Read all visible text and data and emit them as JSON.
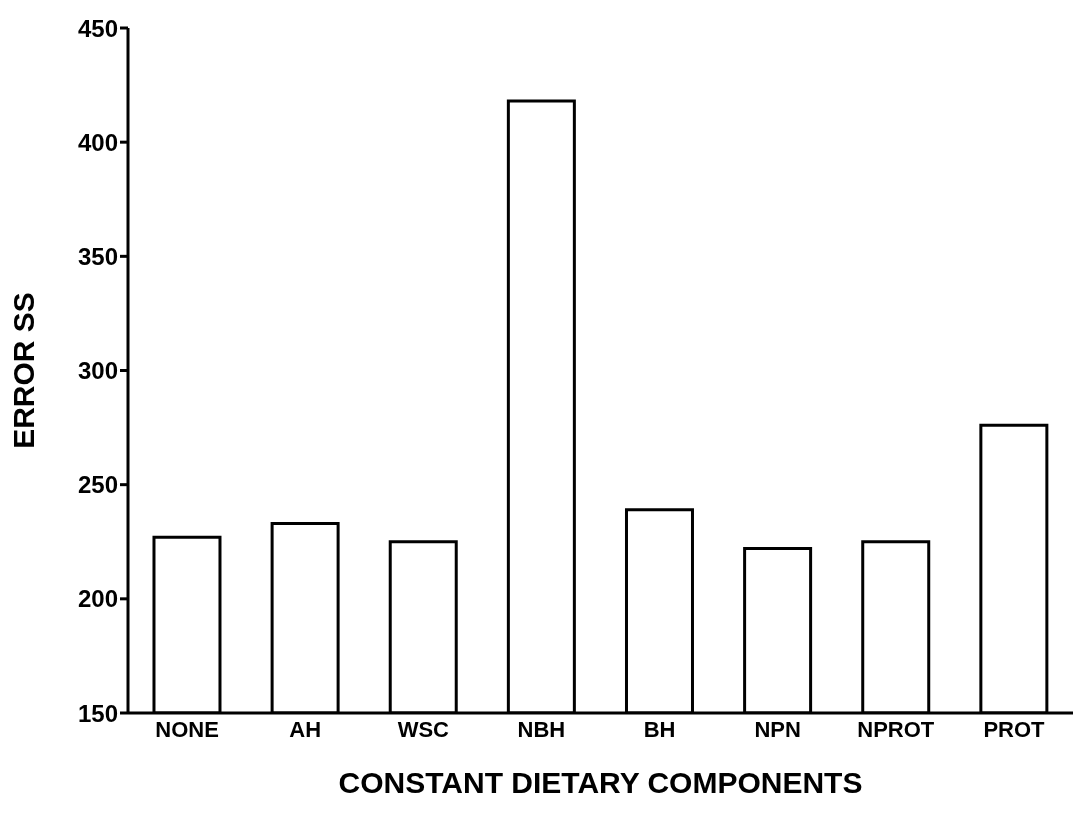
{
  "chart_data": {
    "type": "bar",
    "xlabel": "CONSTANT DIETARY COMPONENTS",
    "ylabel": "ERROR SS",
    "categories": [
      "NONE",
      "AH",
      "WSC",
      "NBH",
      "BH",
      "NPN",
      "NPROT",
      "PROT"
    ],
    "values": [
      227,
      233,
      225,
      418,
      239,
      222,
      225,
      276
    ],
    "color": "#ffffff",
    "ylim": [
      150,
      450
    ],
    "yticks": [
      150,
      200,
      250,
      300,
      350,
      400,
      450
    ],
    "grid": false
  }
}
